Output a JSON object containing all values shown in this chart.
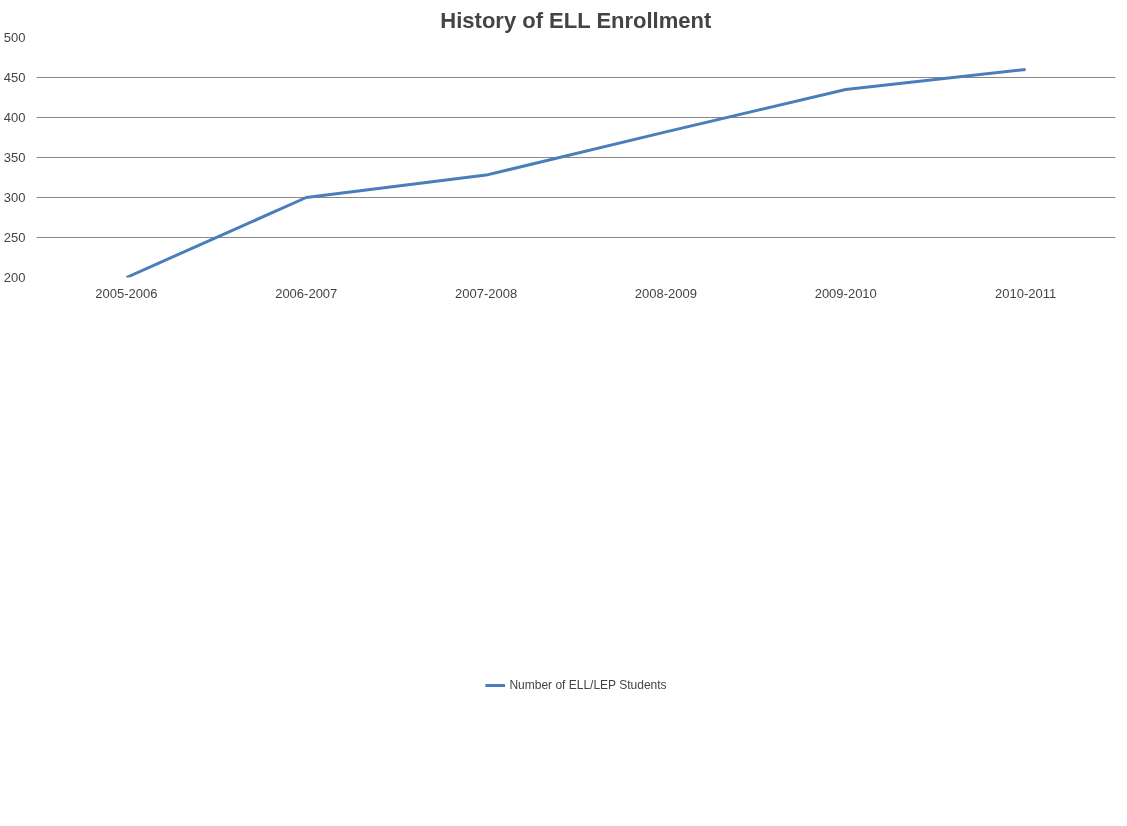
{
  "chart_data": {
    "type": "line",
    "title": "History of ELL Enrollment",
    "categories": [
      "2005-2006",
      "2006-2007",
      "2007-2008",
      "2008-2009",
      "2009-2010",
      "2010-2011"
    ],
    "series": [
      {
        "name": "Number of ELL/LEP Students",
        "color": "#4a7ebb",
        "values": [
          200,
          300,
          328,
          382,
          435,
          460
        ]
      }
    ],
    "ylim": [
      200,
      500
    ],
    "yticks": [
      200,
      250,
      300,
      350,
      400,
      450,
      500
    ],
    "grid": "y",
    "legend": "bottom",
    "marker": "none"
  }
}
